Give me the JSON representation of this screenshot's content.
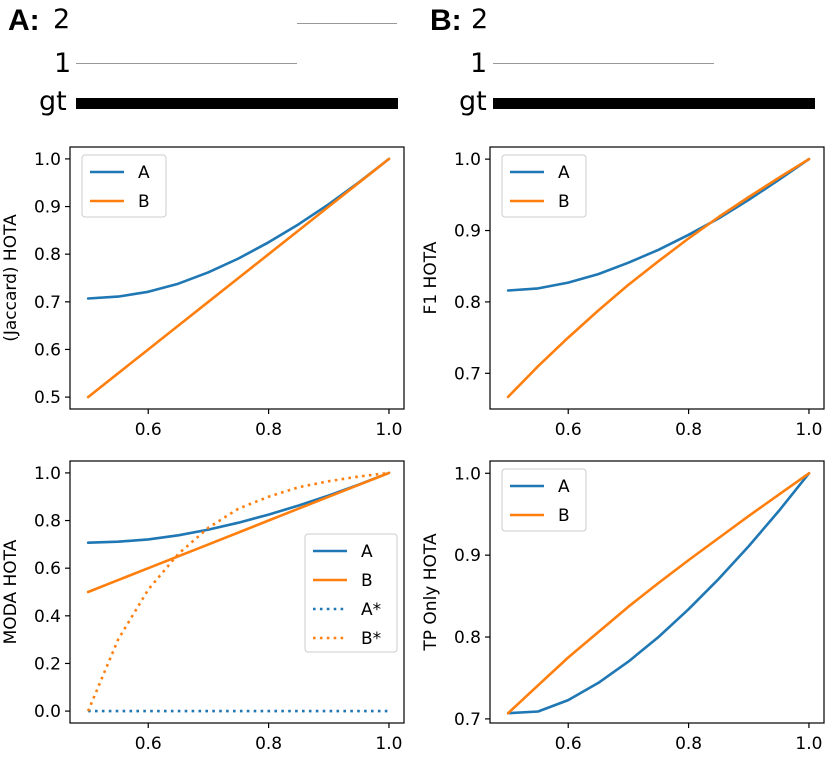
{
  "panels": {
    "A": {
      "letter": "A:",
      "tracks": [
        {
          "label": "2",
          "kind": "thin"
        },
        {
          "label": "1",
          "kind": "thin"
        },
        {
          "label": "gt",
          "kind": "thick"
        }
      ]
    },
    "B": {
      "letter": "B:",
      "tracks": [
        {
          "label": "2",
          "kind": "thin"
        },
        {
          "label": "1",
          "kind": "thin"
        },
        {
          "label": "gt",
          "kind": "thick"
        }
      ]
    }
  },
  "colors": {
    "A": "#1f77b4",
    "B": "#ff7f0e",
    "axis": "#000000",
    "track_thin": "#999999"
  },
  "chart_data": [
    {
      "id": "jaccard",
      "type": "line",
      "title": "",
      "xlabel": "",
      "ylabel": "(Jaccard) HOTA",
      "xlim": [
        0.47,
        1.025
      ],
      "ylim": [
        0.475,
        1.025
      ],
      "xticks": [
        0.6,
        0.8,
        1.0
      ],
      "xtick_labels": [
        "0.6",
        "0.8",
        "1.0"
      ],
      "yticks": [
        0.5,
        0.6,
        0.7,
        0.8,
        0.9,
        1.0
      ],
      "ytick_labels": [
        "0.5",
        "0.6",
        "0.7",
        "0.8",
        "0.9",
        "1.0"
      ],
      "legend": "top-left",
      "x": [
        0.5,
        0.55,
        0.6,
        0.65,
        0.7,
        0.75,
        0.8,
        0.85,
        0.9,
        0.95,
        1.0
      ],
      "series": [
        {
          "name": "A",
          "color": "#1f77b4",
          "style": "solid",
          "values": [
            0.707,
            0.711,
            0.721,
            0.738,
            0.762,
            0.791,
            0.825,
            0.863,
            0.905,
            0.951,
            1.0
          ]
        },
        {
          "name": "B",
          "color": "#ff7f0e",
          "style": "solid",
          "values": [
            0.5,
            0.55,
            0.6,
            0.65,
            0.7,
            0.75,
            0.8,
            0.85,
            0.9,
            0.95,
            1.0
          ]
        }
      ]
    },
    {
      "id": "f1",
      "type": "line",
      "title": "",
      "xlabel": "",
      "ylabel": "F1 HOTA",
      "xlim": [
        0.47,
        1.025
      ],
      "ylim": [
        0.65,
        1.017
      ],
      "xticks": [
        0.6,
        0.8,
        1.0
      ],
      "xtick_labels": [
        "0.6",
        "0.8",
        "1.0"
      ],
      "yticks": [
        0.7,
        0.8,
        0.9,
        1.0
      ],
      "ytick_labels": [
        "0.7",
        "0.8",
        "0.9",
        "1.0"
      ],
      "legend": "top-left",
      "x": [
        0.5,
        0.55,
        0.6,
        0.65,
        0.7,
        0.75,
        0.8,
        0.85,
        0.9,
        0.95,
        1.0
      ],
      "series": [
        {
          "name": "A",
          "color": "#1f77b4",
          "style": "solid",
          "values": [
            0.816,
            0.819,
            0.827,
            0.839,
            0.855,
            0.873,
            0.894,
            0.917,
            0.943,
            0.971,
            1.0
          ]
        },
        {
          "name": "B",
          "color": "#ff7f0e",
          "style": "solid",
          "values": [
            0.667,
            0.71,
            0.75,
            0.788,
            0.824,
            0.857,
            0.889,
            0.919,
            0.947,
            0.974,
            1.0
          ]
        }
      ]
    },
    {
      "id": "moda",
      "type": "line",
      "title": "",
      "xlabel": "",
      "ylabel": "MODA HOTA",
      "xlim": [
        0.47,
        1.025
      ],
      "ylim": [
        -0.05,
        1.05
      ],
      "xticks": [
        0.6,
        0.8,
        1.0
      ],
      "xtick_labels": [
        "0.6",
        "0.8",
        "1.0"
      ],
      "yticks": [
        0.0,
        0.2,
        0.4,
        0.6,
        0.8,
        1.0
      ],
      "ytick_labels": [
        "0.0",
        "0.2",
        "0.4",
        "0.6",
        "0.8",
        "1.0"
      ],
      "legend": "center-right",
      "x": [
        0.5,
        0.55,
        0.6,
        0.65,
        0.7,
        0.75,
        0.8,
        0.85,
        0.9,
        0.95,
        1.0
      ],
      "series": [
        {
          "name": "A",
          "color": "#1f77b4",
          "style": "solid",
          "values": [
            0.707,
            0.711,
            0.721,
            0.738,
            0.762,
            0.791,
            0.825,
            0.863,
            0.905,
            0.951,
            1.0
          ]
        },
        {
          "name": "B",
          "color": "#ff7f0e",
          "style": "solid",
          "values": [
            0.5,
            0.55,
            0.6,
            0.65,
            0.7,
            0.75,
            0.8,
            0.85,
            0.9,
            0.95,
            1.0
          ]
        },
        {
          "name": "A*",
          "color": "#1f77b4",
          "style": "dotted",
          "values": [
            0,
            0,
            0,
            0,
            0,
            0,
            0,
            0,
            0,
            0,
            0
          ]
        },
        {
          "name": "B*",
          "color": "#ff7f0e",
          "style": "dotted",
          "values": [
            0.0,
            0.3,
            0.51,
            0.66,
            0.77,
            0.85,
            0.9,
            0.94,
            0.965,
            0.985,
            1.0
          ]
        }
      ]
    },
    {
      "id": "tp_only",
      "type": "line",
      "title": "",
      "xlabel": "",
      "ylabel": "TP Only HOTA",
      "xlim": [
        0.47,
        1.025
      ],
      "ylim": [
        0.695,
        1.015
      ],
      "xticks": [
        0.6,
        0.8,
        1.0
      ],
      "xtick_labels": [
        "0.6",
        "0.8",
        "1.0"
      ],
      "yticks": [
        0.7,
        0.8,
        0.9,
        1.0
      ],
      "ytick_labels": [
        "0.7",
        "0.8",
        "0.9",
        "1.0"
      ],
      "legend": "top-left",
      "x": [
        0.5,
        0.55,
        0.6,
        0.65,
        0.7,
        0.75,
        0.8,
        0.85,
        0.9,
        0.95,
        1.0
      ],
      "series": [
        {
          "name": "A",
          "color": "#1f77b4",
          "style": "solid",
          "values": [
            0.707,
            0.709,
            0.723,
            0.744,
            0.77,
            0.8,
            0.834,
            0.871,
            0.911,
            0.954,
            1.0
          ]
        },
        {
          "name": "B",
          "color": "#ff7f0e",
          "style": "solid",
          "values": [
            0.707,
            0.741,
            0.775,
            0.806,
            0.837,
            0.866,
            0.894,
            0.921,
            0.948,
            0.974,
            1.0
          ]
        }
      ]
    }
  ]
}
